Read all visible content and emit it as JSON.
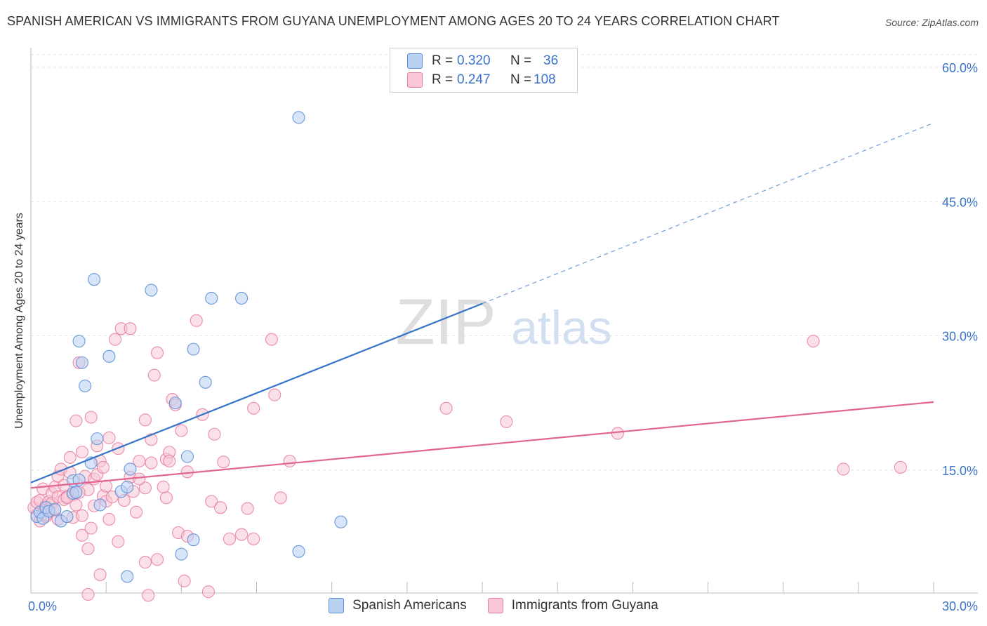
{
  "title": "SPANISH AMERICAN VS IMMIGRANTS FROM GUYANA UNEMPLOYMENT AMONG AGES 20 TO 24 YEARS CORRELATION CHART",
  "source": "Source: ZipAtlas.com",
  "watermark": {
    "zip": "ZIP",
    "atlas": "atlas"
  },
  "legend_top": {
    "rows": [
      {
        "r_label": "R =",
        "r_value": "0.320",
        "n_label": "N =",
        "n_value": "36",
        "color": "#5b8fd6",
        "fill": "#b8d0f2"
      },
      {
        "r_label": "R =",
        "r_value": "0.247",
        "n_label": "N =",
        "n_value": "108",
        "color": "#e87fa3",
        "fill": "#f8c6d6"
      }
    ]
  },
  "chart_data": {
    "type": "scatter",
    "title": "SPANISH AMERICAN VS IMMIGRANTS FROM GUYANA UNEMPLOYMENT AMONG AGES 20 TO 24 YEARS CORRELATION CHART",
    "xlabel": "",
    "ylabel": "Unemployment Among Ages 20 to 24 years",
    "xlim": [
      0,
      30
    ],
    "ylim": [
      0,
      60
    ],
    "x_tick_labels": [
      {
        "value": 0,
        "label": "0.0%"
      },
      {
        "value": 30,
        "label": "30.0%"
      }
    ],
    "y_tick_labels": [
      {
        "value": 15,
        "label": "15.0%"
      },
      {
        "value": 30,
        "label": "30.0%"
      },
      {
        "value": 45,
        "label": "45.0%"
      },
      {
        "value": 60,
        "label": "60.0%"
      }
    ],
    "series": [
      {
        "name": "Spanish Americans",
        "color": "#5b8fd6",
        "fill": "#b8d0f2",
        "trend_color": "#3373c9",
        "trend": {
          "x0": 0,
          "y0": 13.6,
          "x1": 15,
          "y1": 33.6,
          "dash_to_x": 30,
          "dash_to_y": 53.8
        },
        "points": [
          [
            0.2,
            9.8
          ],
          [
            0.3,
            10.3
          ],
          [
            0.4,
            9.6
          ],
          [
            0.5,
            10.8
          ],
          [
            0.6,
            10.4
          ],
          [
            1.0,
            9.3
          ],
          [
            1.2,
            9.8
          ],
          [
            1.4,
            12.4
          ],
          [
            1.4,
            13.8
          ],
          [
            1.5,
            12.5
          ],
          [
            1.6,
            13.9
          ],
          [
            1.6,
            29.4
          ],
          [
            1.7,
            27.0
          ],
          [
            1.8,
            24.4
          ],
          [
            2.0,
            15.8
          ],
          [
            2.1,
            36.3
          ],
          [
            2.2,
            18.5
          ],
          [
            2.3,
            11.1
          ],
          [
            2.6,
            27.7
          ],
          [
            3.0,
            12.6
          ],
          [
            3.2,
            13.1
          ],
          [
            3.2,
            3.1
          ],
          [
            3.3,
            15.1
          ],
          [
            4.0,
            35.1
          ],
          [
            4.8,
            22.5
          ],
          [
            5.0,
            5.6
          ],
          [
            5.2,
            16.5
          ],
          [
            5.4,
            7.2
          ],
          [
            5.4,
            28.5
          ],
          [
            6.0,
            34.2
          ],
          [
            5.8,
            24.8
          ],
          [
            7.0,
            34.2
          ],
          [
            8.9,
            54.4
          ],
          [
            8.9,
            5.9
          ],
          [
            10.3,
            9.2
          ],
          [
            0.8,
            10.6
          ]
        ]
      },
      {
        "name": "Immigrants from Guyana",
        "color": "#e87fa3",
        "fill": "#f8c6d6",
        "trend_color": "#e0668f",
        "trend": {
          "x0": 0,
          "y0": 13.0,
          "x1": 30,
          "y1": 22.6
        },
        "points": [
          [
            0.1,
            10.8
          ],
          [
            0.2,
            10.0
          ],
          [
            0.2,
            11.4
          ],
          [
            0.3,
            9.3
          ],
          [
            0.3,
            11.6
          ],
          [
            0.4,
            10.1
          ],
          [
            0.4,
            12.9
          ],
          [
            0.5,
            11.0
          ],
          [
            0.5,
            9.8
          ],
          [
            0.6,
            11.5
          ],
          [
            0.6,
            10.6
          ],
          [
            0.7,
            12.4
          ],
          [
            0.7,
            11.3
          ],
          [
            0.8,
            13.1
          ],
          [
            0.8,
            10.5
          ],
          [
            0.9,
            14.3
          ],
          [
            0.9,
            12.0
          ],
          [
            1.0,
            15.1
          ],
          [
            1.1,
            13.3
          ],
          [
            1.1,
            11.7
          ],
          [
            1.2,
            12.0
          ],
          [
            1.3,
            16.4
          ],
          [
            1.3,
            14.7
          ],
          [
            1.4,
            9.7
          ],
          [
            1.4,
            12.2
          ],
          [
            1.5,
            11.1
          ],
          [
            1.5,
            20.5
          ],
          [
            1.6,
            27.0
          ],
          [
            1.7,
            7.7
          ],
          [
            1.7,
            9.9
          ],
          [
            1.7,
            17.0
          ],
          [
            1.8,
            14.3
          ],
          [
            1.9,
            12.8
          ],
          [
            1.9,
            6.2
          ],
          [
            1.9,
            1.1
          ],
          [
            2.0,
            8.5
          ],
          [
            2.0,
            20.9
          ],
          [
            2.1,
            14.0
          ],
          [
            2.1,
            11.0
          ],
          [
            2.2,
            14.5
          ],
          [
            2.2,
            17.7
          ],
          [
            2.3,
            16.0
          ],
          [
            2.3,
            3.3
          ],
          [
            2.4,
            12.1
          ],
          [
            2.4,
            15.3
          ],
          [
            2.5,
            11.5
          ],
          [
            2.5,
            13.2
          ],
          [
            2.6,
            9.5
          ],
          [
            2.6,
            18.6
          ],
          [
            2.8,
            29.6
          ],
          [
            2.9,
            7.0
          ],
          [
            2.9,
            17.4
          ],
          [
            3.0,
            30.8
          ],
          [
            3.1,
            11.6
          ],
          [
            3.3,
            14.2
          ],
          [
            3.3,
            30.8
          ],
          [
            3.4,
            12.6
          ],
          [
            3.5,
            10.3
          ],
          [
            3.6,
            16.0
          ],
          [
            3.8,
            4.7
          ],
          [
            3.8,
            13.0
          ],
          [
            3.8,
            20.6
          ],
          [
            3.9,
            1.0
          ],
          [
            4.0,
            18.4
          ],
          [
            4.0,
            15.8
          ],
          [
            4.1,
            25.6
          ],
          [
            4.2,
            28.1
          ],
          [
            4.2,
            5.0
          ],
          [
            4.5,
            11.9
          ],
          [
            4.5,
            16.2
          ],
          [
            4.6,
            17.0
          ],
          [
            4.6,
            16.0
          ],
          [
            4.7,
            22.9
          ],
          [
            4.8,
            22.3
          ],
          [
            4.9,
            8.0
          ],
          [
            5.0,
            19.4
          ],
          [
            5.1,
            2.6
          ],
          [
            5.2,
            14.8
          ],
          [
            5.2,
            7.6
          ],
          [
            5.5,
            31.7
          ],
          [
            5.7,
            21.2
          ],
          [
            5.9,
            1.4
          ],
          [
            6.0,
            11.5
          ],
          [
            6.1,
            19.0
          ],
          [
            6.3,
            10.8
          ],
          [
            6.4,
            15.9
          ],
          [
            6.6,
            7.3
          ],
          [
            7.0,
            7.8
          ],
          [
            7.2,
            10.7
          ],
          [
            7.4,
            21.9
          ],
          [
            7.4,
            7.3
          ],
          [
            8.0,
            29.6
          ],
          [
            8.1,
            23.4
          ],
          [
            8.3,
            11.9
          ],
          [
            8.6,
            16.0
          ],
          [
            13.8,
            21.9
          ],
          [
            15.8,
            20.4
          ],
          [
            19.5,
            19.1
          ],
          [
            26.0,
            29.4
          ],
          [
            27.0,
            15.1
          ],
          [
            28.9,
            15.3
          ],
          [
            1.2,
            11.9
          ],
          [
            0.5,
            10.0
          ],
          [
            0.9,
            9.5
          ],
          [
            1.6,
            12.5
          ],
          [
            2.7,
            12.0
          ],
          [
            3.6,
            14.0
          ],
          [
            4.4,
            13.1
          ]
        ]
      }
    ],
    "legend": [
      "Spanish Americans",
      "Immigrants from Guyana"
    ],
    "grid": true
  }
}
